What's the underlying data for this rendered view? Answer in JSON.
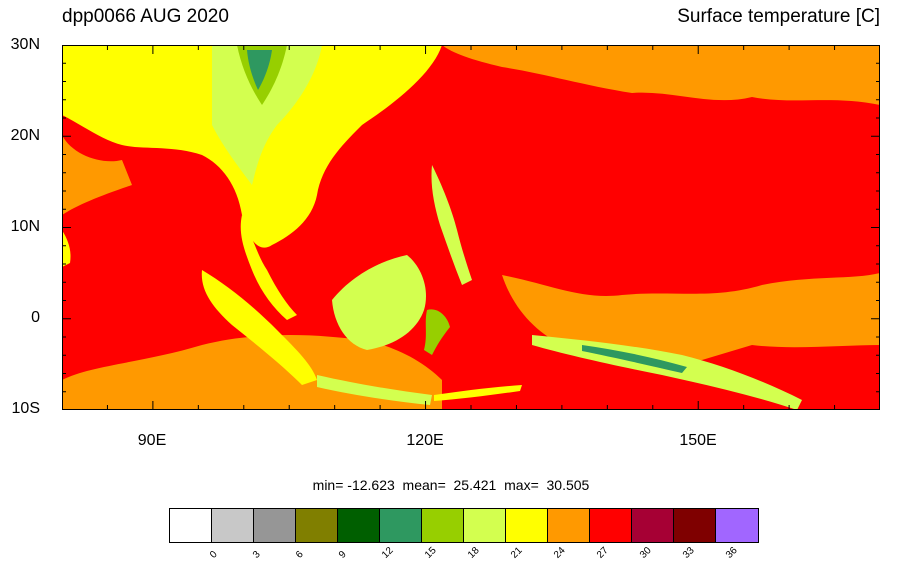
{
  "header": {
    "left_title": "dpp0066 AUG 2020",
    "right_title": "Surface temperature [C]"
  },
  "axes": {
    "lat_labels": [
      "30N",
      "20N",
      "10N",
      "0",
      "10S"
    ],
    "lon_labels": [
      "90E",
      "120E",
      "150E"
    ]
  },
  "stats_line": "min= -12.623  mean=  25.421  max=  30.505",
  "colorbar": {
    "colors": [
      "#ffffff",
      "#c8c8c8",
      "#969696",
      "#807f00",
      "#005f00",
      "#2e9860",
      "#97cf00",
      "#d3ff4f",
      "#ffff00",
      "#ff9900",
      "#ff0000",
      "#a60034",
      "#7f0000",
      "#a166ff"
    ],
    "tick_labels": [
      "0",
      "3",
      "6",
      "9",
      "12",
      "15",
      "18",
      "21",
      "24",
      "27",
      "30",
      "33",
      "36"
    ]
  },
  "palette": {
    "ocean_warm": "#ff9900",
    "ocean_hot": "#ff0000",
    "land_yellow": "#ffff00",
    "land_lime": "#d3ff4f",
    "land_green": "#97cf00",
    "land_dark": "#2e9860"
  }
}
